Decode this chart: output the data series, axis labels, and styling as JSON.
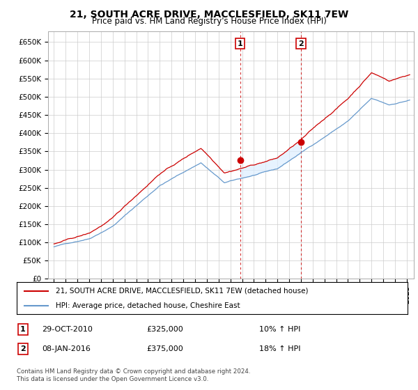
{
  "title": "21, SOUTH ACRE DRIVE, MACCLESFIELD, SK11 7EW",
  "subtitle": "Price paid vs. HM Land Registry's House Price Index (HPI)",
  "legend_line1": "21, SOUTH ACRE DRIVE, MACCLESFIELD, SK11 7EW (detached house)",
  "legend_line2": "HPI: Average price, detached house, Cheshire East",
  "sale1_date": "29-OCT-2010",
  "sale1_price": "£325,000",
  "sale1_hpi": "10% ↑ HPI",
  "sale2_date": "08-JAN-2016",
  "sale2_price": "£375,000",
  "sale2_hpi": "18% ↑ HPI",
  "footer": "Contains HM Land Registry data © Crown copyright and database right 2024.\nThis data is licensed under the Open Government Licence v3.0.",
  "sale_color": "#cc0000",
  "hpi_color": "#6699cc",
  "hpi_fill_color": "#ddeeff",
  "grid_color": "#cccccc",
  "background_color": "#ffffff"
}
